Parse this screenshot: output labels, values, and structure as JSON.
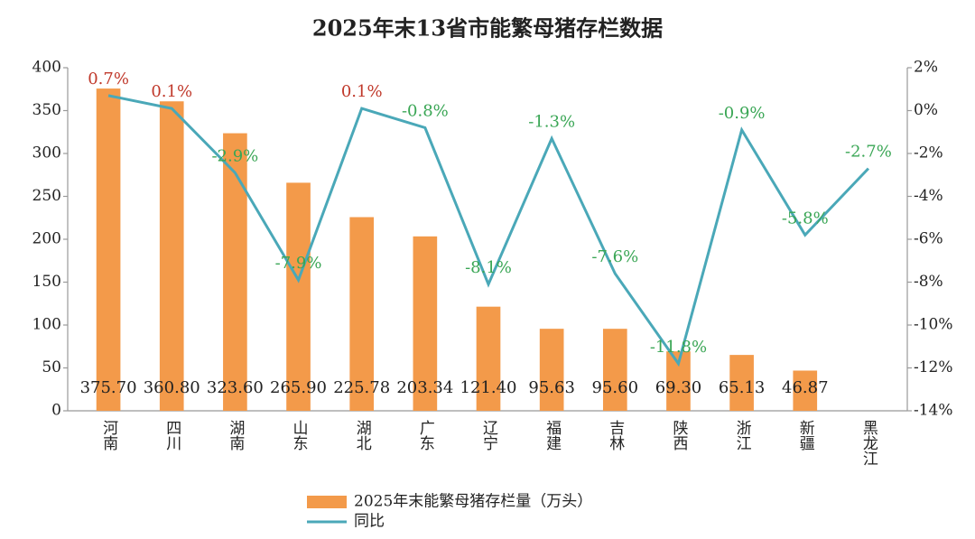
{
  "chart_data": {
    "type": "bar",
    "title": "2025年末13省市能繁母猪存栏数据",
    "categories": [
      "河南",
      "四川",
      "湖南",
      "山东",
      "湖北",
      "广东",
      "辽宁",
      "福建",
      "吉林",
      "陕西",
      "浙江",
      "新疆",
      "黑龙江"
    ],
    "series": [
      {
        "name": "2025年末能繁母猪存栏量（万头）",
        "type": "bar",
        "color": "#f39a4a",
        "values": [
          375.7,
          360.8,
          323.6,
          265.9,
          225.78,
          203.34,
          121.4,
          95.63,
          95.6,
          69.3,
          65.13,
          46.87,
          null
        ],
        "value_labels": [
          "375.70",
          "360.80",
          "323.60",
          "265.90",
          "225.78",
          "203.34",
          "121.40",
          "95.63",
          "95.60",
          "69.30",
          "65.13",
          "46.87",
          null
        ]
      },
      {
        "name": "同比",
        "type": "line",
        "axis": "y2",
        "color": "#4aa8b8",
        "label_colors": {
          "positive": "#c0392b",
          "negative": "#3aa655"
        },
        "values": [
          0.7,
          0.1,
          -2.9,
          -7.9,
          0.1,
          -0.8,
          -8.1,
          -1.3,
          -7.6,
          -11.8,
          -0.9,
          -5.8,
          -2.7
        ],
        "value_labels": [
          "0.7%",
          "0.1%",
          "-2.9%",
          "-7.9%",
          "0.1%",
          "-0.8%",
          "-8.1%",
          "-1.3%",
          "-7.6%",
          "-11.8%",
          "-0.9%",
          "-5.8%",
          "-2.7%"
        ]
      }
    ],
    "ylim": [
      0,
      400
    ],
    "yticks": [
      0,
      50,
      100,
      150,
      200,
      250,
      300,
      350,
      400
    ],
    "y2lim": [
      -14,
      2
    ],
    "y2ticks": [
      {
        "value": -14,
        "label": "-14%"
      },
      {
        "value": -12,
        "label": "-12%"
      },
      {
        "value": -10,
        "label": "-10%"
      },
      {
        "value": -8,
        "label": "-8%"
      },
      {
        "value": -6,
        "label": "-6%"
      },
      {
        "value": -4,
        "label": "-4%"
      },
      {
        "value": -2,
        "label": "-2%"
      },
      {
        "value": 0,
        "label": "0%"
      },
      {
        "value": 2,
        "label": "2%"
      }
    ],
    "grid": false
  }
}
